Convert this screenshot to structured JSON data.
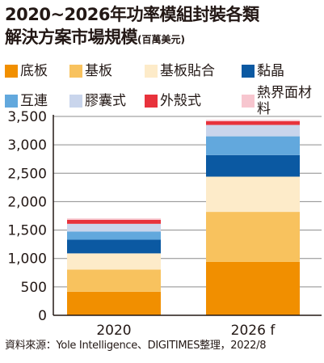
{
  "title": {
    "line1": "2020~2026年功率模組封裝各類",
    "line2": "解決方案市場規模",
    "unit": "(百萬美元)"
  },
  "source": "資料來源：Yole Intelligence、DIGITIMES整理，2022/8",
  "chart_data": {
    "type": "bar",
    "stacked": true,
    "categories": [
      "2020",
      "2026 f"
    ],
    "ylim": [
      0,
      3500
    ],
    "yticks": [
      0,
      500,
      1000,
      1500,
      2000,
      2500,
      3000,
      3500
    ],
    "ytick_labels": [
      "0",
      "500",
      "1,000",
      "1,500",
      "2,000",
      "2,500",
      "3,000",
      "3,500"
    ],
    "grid": "horizontal",
    "legend_position": "top",
    "series": [
      {
        "name": "底板",
        "color": "#f18f00",
        "values": [
          415,
          940
        ]
      },
      {
        "name": "基板",
        "color": "#f8c25e",
        "values": [
          390,
          880
        ]
      },
      {
        "name": "基板貼合",
        "color": "#fdebc9",
        "values": [
          285,
          620
        ]
      },
      {
        "name": "黏晶",
        "color": "#0b59a2",
        "values": [
          240,
          380
        ]
      },
      {
        "name": "互連",
        "color": "#62a8dd",
        "values": [
          145,
          330
        ]
      },
      {
        "name": "膠囊式",
        "color": "#c9d5ec",
        "values": [
          135,
          200
        ]
      },
      {
        "name": "外殼式",
        "color": "#e8323c",
        "values": [
          70,
          65
        ]
      },
      {
        "name": "熱界面材料",
        "color": "#f7c6cf",
        "values": [
          25,
          25
        ]
      }
    ]
  }
}
